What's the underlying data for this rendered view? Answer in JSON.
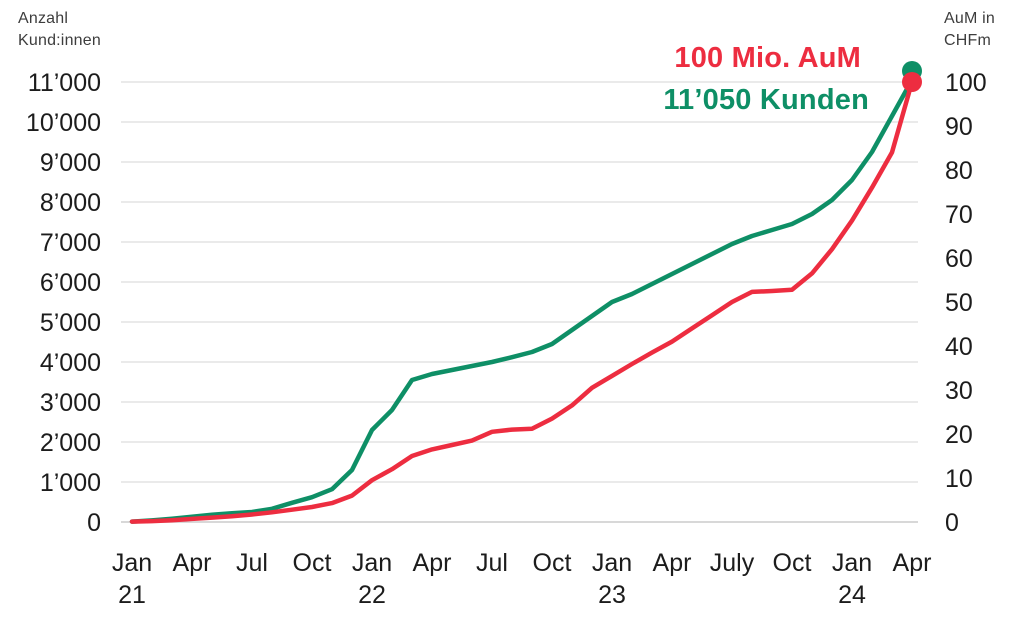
{
  "page": {
    "background": "#ffffff"
  },
  "colors": {
    "kunden_green": "#0E8F66",
    "aum_red": "#ED2D40",
    "grid": "#E3E3E3",
    "baseline": "#CBCBCB",
    "tick_text": "#1C1C1C",
    "axis_title_text": "#3D3D3D"
  },
  "left_axis": {
    "title_line1": "Anzahl",
    "title_line2": "Kund:innen",
    "tick_labels": [
      "0",
      "1’000",
      "2’000",
      "3’000",
      "4’000",
      "5’000",
      "6’000",
      "7’000",
      "8’000",
      "9’000",
      "10’000",
      "11’000"
    ],
    "min": 0,
    "max": 11000
  },
  "right_axis": {
    "title_line1": "AuM in",
    "title_line2": "CHFm",
    "tick_labels": [
      "0",
      "10",
      "20",
      "30",
      "40",
      "50",
      "60",
      "70",
      "80",
      "90",
      "100"
    ],
    "min": 0,
    "max": 100
  },
  "x_axis": {
    "tick_month_indices": [
      0,
      3,
      6,
      9,
      12,
      15,
      18,
      21,
      24,
      27,
      30,
      33,
      36,
      39
    ],
    "tick_labels": [
      "Jan",
      "Apr",
      "Jul",
      "Oct",
      "Jan",
      "Apr",
      "Jul",
      "Oct",
      "Jan",
      "Apr",
      "July",
      "Oct",
      "Jan",
      "Apr"
    ],
    "year_labels": [
      {
        "month_index": 0,
        "label": "21"
      },
      {
        "month_index": 12,
        "label": "22"
      },
      {
        "month_index": 24,
        "label": "23"
      },
      {
        "month_index": 36,
        "label": "24"
      }
    ]
  },
  "annotations": {
    "aum": "100 Mio. AuM",
    "kunden": "11’050 Kunden"
  },
  "chart_data": {
    "type": "line",
    "title": "",
    "x": [
      "Jan 21",
      "Feb 21",
      "Mar 21",
      "Apr 21",
      "May 21",
      "Jun 21",
      "Jul 21",
      "Aug 21",
      "Sep 21",
      "Oct 21",
      "Nov 21",
      "Dec 21",
      "Jan 22",
      "Feb 22",
      "Mar 22",
      "Apr 22",
      "May 22",
      "Jun 22",
      "Jul 22",
      "Aug 22",
      "Sep 22",
      "Oct 22",
      "Nov 22",
      "Dec 22",
      "Jan 23",
      "Feb 23",
      "Mar 23",
      "Apr 23",
      "May 23",
      "Jun 23",
      "Jul 23",
      "Aug 23",
      "Sep 23",
      "Oct 23",
      "Nov 23",
      "Dec 23",
      "Jan 24",
      "Feb 24",
      "Mar 24",
      "Apr 24"
    ],
    "series": [
      {
        "name": "Kunden (Anzahl Kund:innen, left axis)",
        "axis": "left",
        "color_key": "kunden_green",
        "end_label": "11’050 Kunden",
        "values": [
          10,
          40,
          80,
          130,
          180,
          220,
          250,
          330,
          480,
          620,
          820,
          1300,
          2300,
          2800,
          3550,
          3700,
          3800,
          3900,
          4000,
          4120,
          4250,
          4450,
          4800,
          5150,
          5500,
          5700,
          5950,
          6200,
          6450,
          6700,
          6950,
          7150,
          7300,
          7450,
          7700,
          8050,
          8550,
          9250,
          10150,
          11050
        ]
      },
      {
        "name": "AuM in CHFm (right axis)",
        "axis": "right",
        "color_key": "aum_red",
        "end_label": "100 Mio. AuM",
        "values": [
          0.1,
          0.2,
          0.4,
          0.7,
          1.0,
          1.3,
          1.7,
          2.2,
          2.8,
          3.4,
          4.3,
          6.0,
          9.5,
          12.0,
          15.0,
          16.5,
          17.5,
          18.5,
          20.5,
          21.0,
          21.2,
          23.5,
          26.5,
          30.5,
          33.2,
          35.9,
          38.5,
          41.0,
          44.0,
          47.0,
          50.0,
          52.3,
          52.5,
          52.8,
          56.5,
          62.0,
          68.5,
          76.0,
          84.0,
          100.0
        ]
      }
    ],
    "left_ylim": [
      0,
      11000
    ],
    "right_ylim": [
      0,
      100
    ],
    "grid": "horizontal gridlines at left-axis ticks only",
    "legend": "colored end-point annotations, top right"
  }
}
